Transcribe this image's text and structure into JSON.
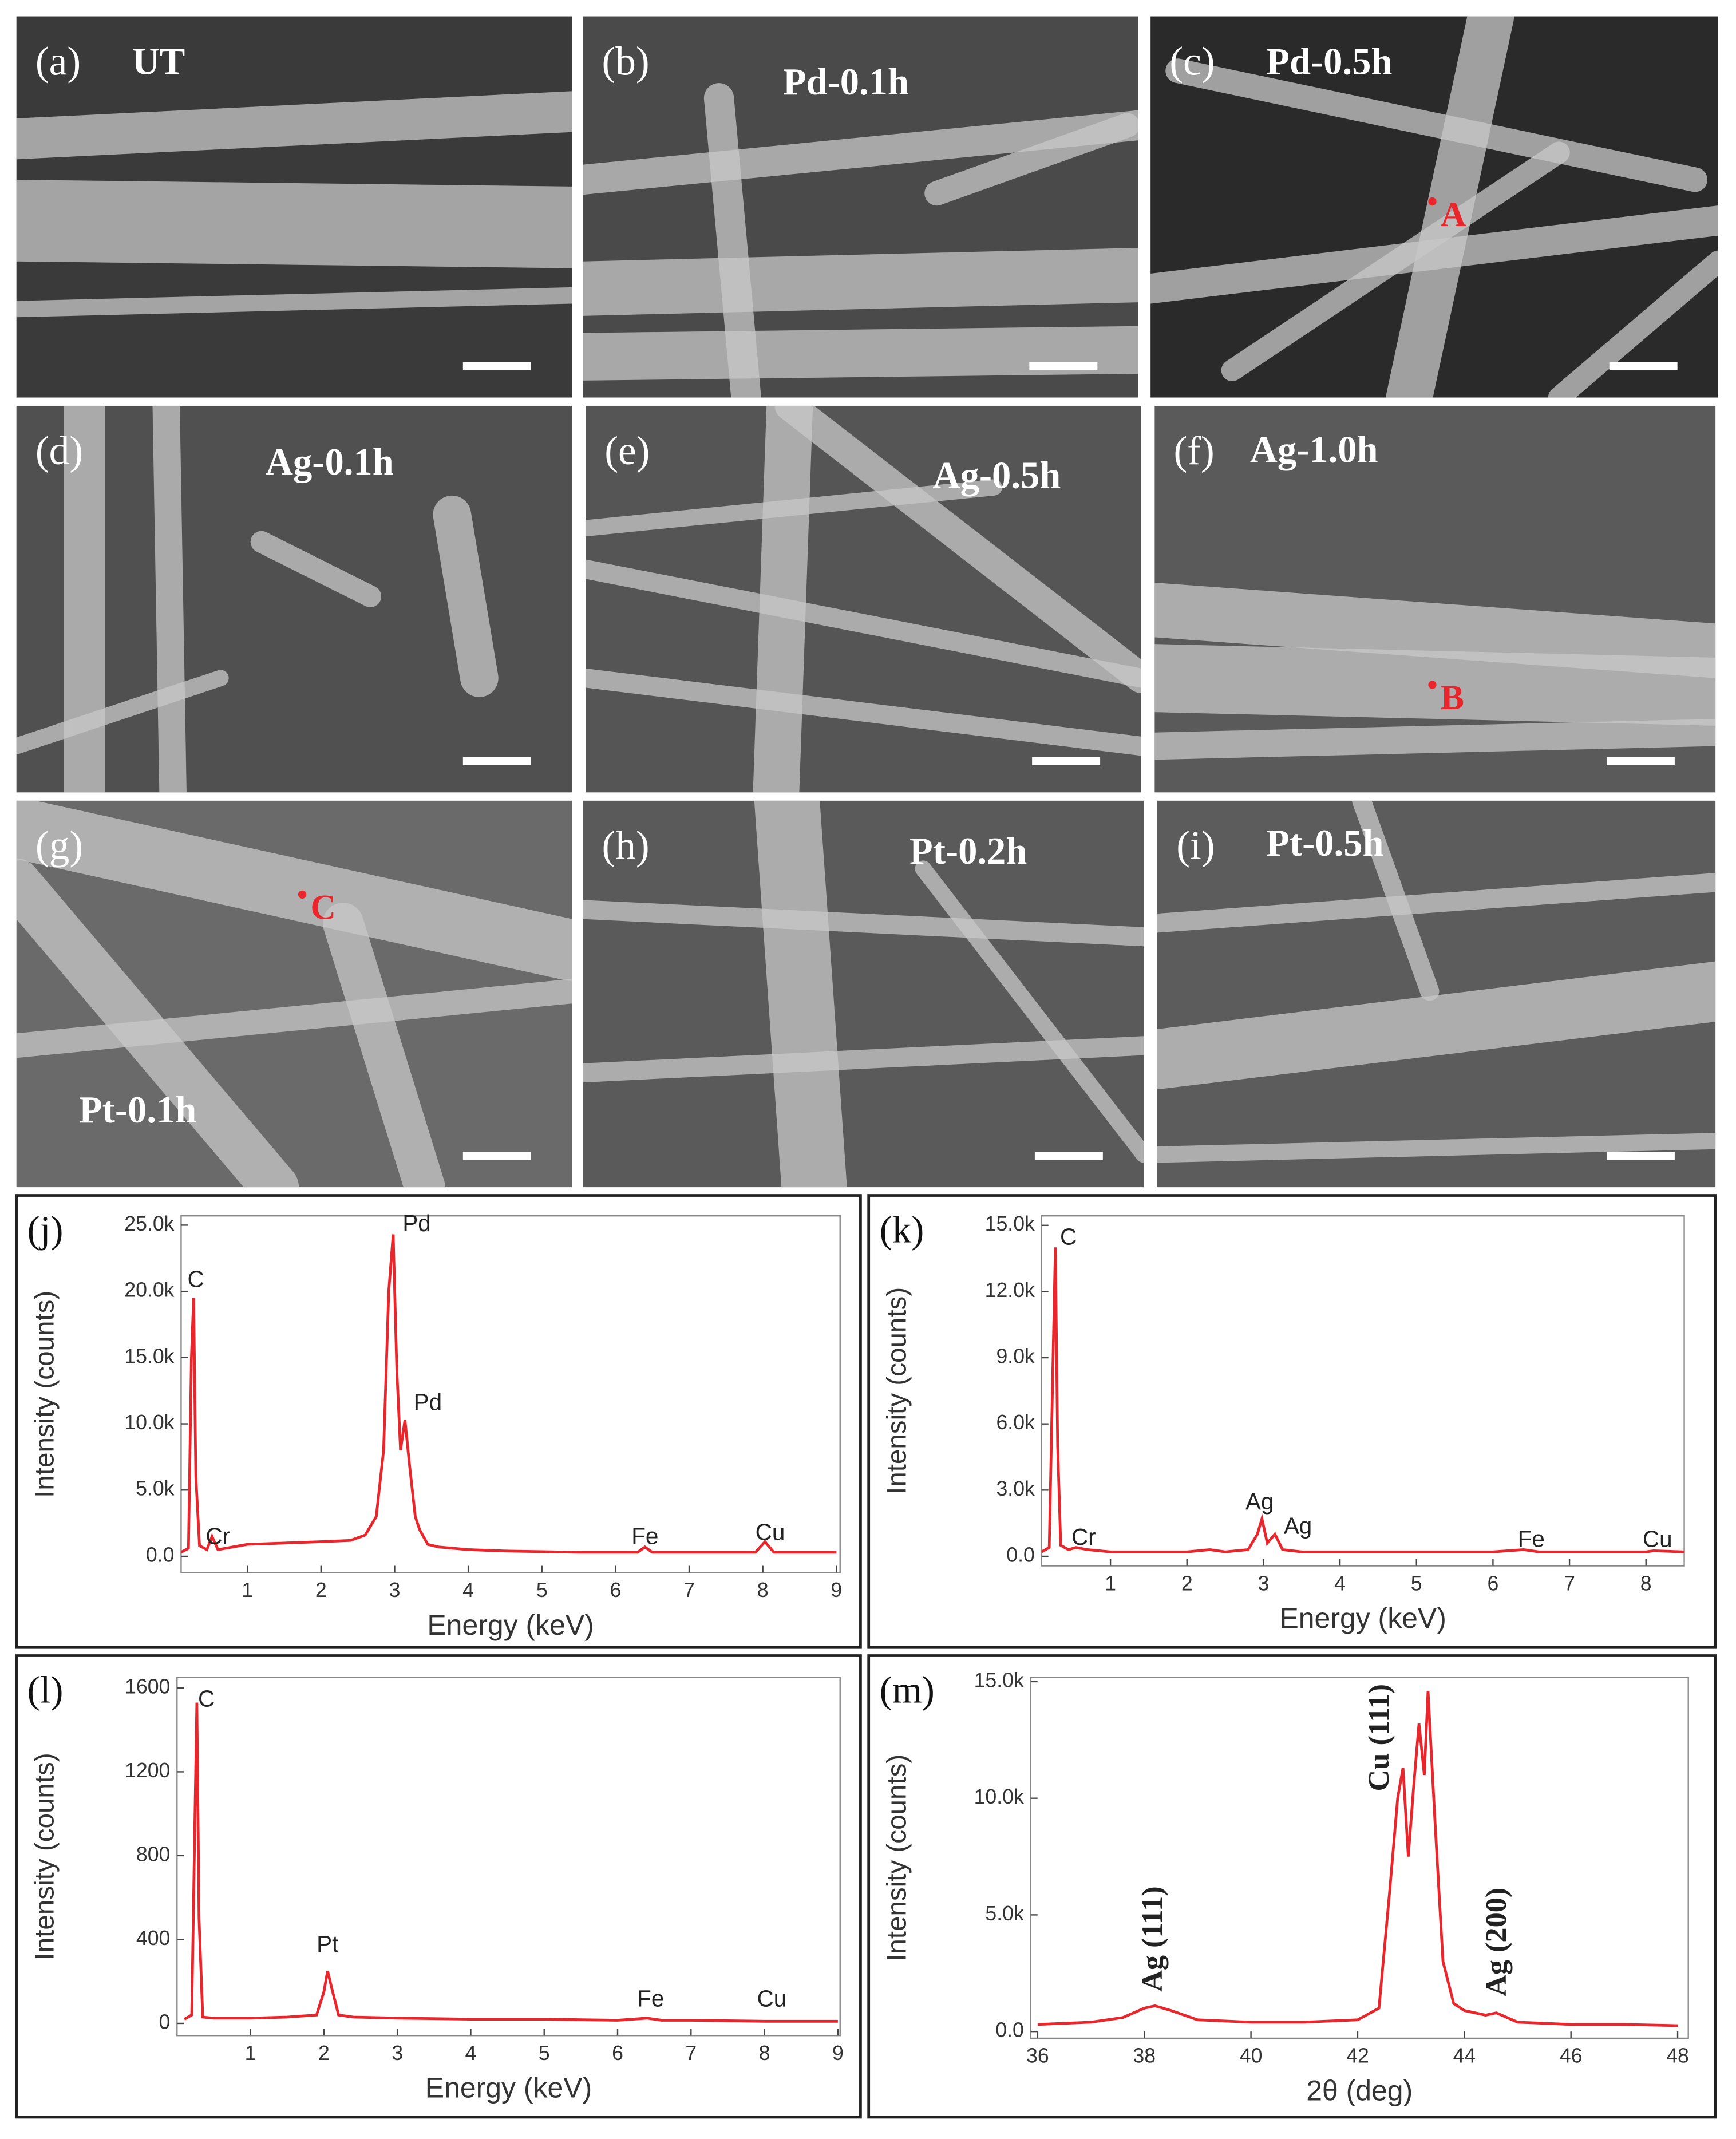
{
  "panels": [
    {
      "label": "(a)",
      "title": "UT"
    },
    {
      "label": "(b)",
      "title": "Pd-0.1h"
    },
    {
      "label": "(c)",
      "title": "Pd-0.5h",
      "marker": "A"
    },
    {
      "label": "(d)",
      "title": "Ag-0.1h"
    },
    {
      "label": "(e)",
      "title": "Ag-0.5h"
    },
    {
      "label": "(f)",
      "title": "Ag-1.0h",
      "marker": "B"
    },
    {
      "label": "(g)",
      "title": "Pt-0.1h",
      "marker": "C"
    },
    {
      "label": "(h)",
      "title": "Pt-0.2h"
    },
    {
      "label": "(i)",
      "title": "Pt-0.5h"
    }
  ],
  "chart_data": [
    {
      "type": "line",
      "label": "(j)",
      "xlabel": "Energy (keV)",
      "ylabel": "Intensity (counts)",
      "color": "#e8262b",
      "x": [
        0.1,
        0.2,
        0.24,
        0.27,
        0.3,
        0.35,
        0.45,
        0.52,
        0.6,
        0.8,
        1,
        1.5,
        2,
        2.4,
        2.6,
        2.75,
        2.85,
        2.92,
        2.98,
        3.03,
        3.08,
        3.14,
        3.2,
        3.28,
        3.34,
        3.45,
        3.6,
        4,
        4.5,
        5,
        5.5,
        6,
        6.3,
        6.4,
        6.5,
        7,
        7.5,
        7.9,
        8.03,
        8.15,
        8.5,
        9
      ],
      "values": [
        300,
        600,
        15000,
        19500,
        6000,
        800,
        500,
        1500,
        500,
        700,
        900,
        1000,
        1100,
        1200,
        1600,
        3000,
        8000,
        20000,
        24300,
        14000,
        8000,
        10300,
        7000,
        3000,
        2000,
        900,
        700,
        500,
        400,
        350,
        300,
        300,
        300,
        700,
        300,
        300,
        300,
        300,
        1100,
        300,
        300,
        300
      ],
      "xlim": [
        0.1,
        9.05
      ],
      "ylim": [
        -1230,
        25700
      ],
      "xticks": [
        1,
        2,
        3,
        4,
        5,
        6,
        7,
        8,
        9
      ],
      "yticks": [
        {
          "value": 0,
          "label": "0.0"
        },
        {
          "value": 5000,
          "label": "5.0k"
        },
        {
          "value": 10000,
          "label": "10.0k"
        },
        {
          "value": 15000,
          "label": "15.0k"
        },
        {
          "value": 20000,
          "label": "20.0k"
        },
        {
          "value": 25000,
          "label": "25.0k"
        }
      ],
      "annotations": [
        {
          "text": "C",
          "x": 0.3,
          "y": 20800
        },
        {
          "text": "Cr",
          "x": 0.6,
          "y": 1400
        },
        {
          "text": "Pd",
          "x": 3.3,
          "y": 25000
        },
        {
          "text": "Pd",
          "x": 3.45,
          "y": 11500
        },
        {
          "text": "Fe",
          "x": 6.4,
          "y": 1400
        },
        {
          "text": "Cu",
          "x": 8.1,
          "y": 1700
        }
      ]
    },
    {
      "type": "line",
      "label": "(k)",
      "xlabel": "Energy (keV)",
      "ylabel": "Intensity (counts)",
      "color": "#e8262b",
      "x": [
        0.1,
        0.2,
        0.25,
        0.28,
        0.31,
        0.35,
        0.45,
        0.55,
        0.7,
        1,
        2,
        2.3,
        2.5,
        2.8,
        2.92,
        2.98,
        3.05,
        3.15,
        3.25,
        3.5,
        4,
        5,
        6,
        6.4,
        6.6,
        7,
        8,
        8.1,
        8.5
      ],
      "values": [
        200,
        400,
        9000,
        14000,
        5000,
        500,
        300,
        400,
        300,
        200,
        200,
        300,
        200,
        300,
        1000,
        1700,
        600,
        1000,
        300,
        200,
        200,
        200,
        200,
        300,
        200,
        200,
        200,
        250,
        200
      ],
      "xlim": [
        0.1,
        8.5
      ],
      "ylim": [
        -430,
        15430
      ],
      "xticks": [
        1,
        2,
        3,
        4,
        5,
        6,
        7,
        8
      ],
      "yticks": [
        {
          "value": 0,
          "label": "0.0"
        },
        {
          "value": 3000,
          "label": "3.0k"
        },
        {
          "value": 6000,
          "label": "6.0k"
        },
        {
          "value": 9000,
          "label": "9.0k"
        },
        {
          "value": 12000,
          "label": "12.0k"
        },
        {
          "value": 15000,
          "label": "15.0k"
        }
      ],
      "annotations": [
        {
          "text": "C",
          "x": 0.45,
          "y": 14400
        },
        {
          "text": "Cr",
          "x": 0.65,
          "y": 800
        },
        {
          "text": "Ag",
          "x": 2.95,
          "y": 2400
        },
        {
          "text": "Ag",
          "x": 3.45,
          "y": 1300
        },
        {
          "text": "Fe",
          "x": 6.5,
          "y": 700
        },
        {
          "text": "Cu",
          "x": 8.15,
          "y": 700
        }
      ]
    },
    {
      "type": "line",
      "label": "(l)",
      "xlabel": "Energy (keV)",
      "ylabel": "Intensity (counts)",
      "color": "#e8262b",
      "x": [
        0.1,
        0.2,
        0.24,
        0.27,
        0.3,
        0.35,
        0.5,
        1,
        1.5,
        1.9,
        2,
        2.05,
        2.12,
        2.2,
        2.4,
        3,
        4,
        5,
        6,
        6.4,
        6.6,
        7,
        8,
        9
      ],
      "values": [
        20,
        40,
        900,
        1530,
        500,
        30,
        25,
        25,
        30,
        40,
        150,
        250,
        150,
        40,
        30,
        25,
        20,
        20,
        15,
        25,
        15,
        15,
        10,
        10
      ],
      "xlim": [
        0,
        9.03
      ],
      "ylim": [
        -58,
        1650
      ],
      "xticks": [
        1,
        2,
        3,
        4,
        5,
        6,
        7,
        8,
        9
      ],
      "yticks": [
        0,
        400,
        800,
        1200,
        1600
      ],
      "annotations": [
        {
          "text": "C",
          "x": 0.4,
          "y": 1540
        },
        {
          "text": "Pt",
          "x": 2.05,
          "y": 370
        },
        {
          "text": "Fe",
          "x": 6.45,
          "y": 110
        },
        {
          "text": "Cu",
          "x": 8.1,
          "y": 110
        }
      ]
    },
    {
      "type": "line",
      "label": "(m)",
      "xlabel": "2θ (deg)",
      "ylabel": "Intensity (counts)",
      "color": "#e8262b",
      "vertical_annotations": true,
      "x": [
        36,
        37,
        37.6,
        38,
        38.2,
        38.5,
        39,
        40,
        41,
        42,
        42.4,
        42.6,
        42.75,
        42.85,
        42.95,
        43.05,
        43.15,
        43.25,
        43.32,
        43.45,
        43.6,
        43.8,
        44,
        44.4,
        44.6,
        45,
        46,
        47,
        48
      ],
      "values": [
        300,
        400,
        600,
        1000,
        1100,
        900,
        500,
        400,
        400,
        500,
        1000,
        6000,
        10000,
        11300,
        7500,
        10500,
        13200,
        11000,
        14600,
        9000,
        3000,
        1200,
        900,
        700,
        800,
        400,
        300,
        300,
        250
      ],
      "xlim": [
        35.87,
        48.2
      ],
      "ylim": [
        -290,
        15180
      ],
      "xticks": [
        36,
        38,
        40,
        42,
        44,
        46,
        48
      ],
      "yticks": [
        {
          "value": 0,
          "label": "0.0"
        },
        {
          "value": 5000,
          "label": "5.0k"
        },
        {
          "value": 10000,
          "label": "10.0k"
        },
        {
          "value": 15000,
          "label": "15.0k"
        }
      ],
      "annotations": [
        {
          "text": "Ag (111)",
          "x": 38.2,
          "y": 1700
        },
        {
          "text": "Cu (111)",
          "x": 42.45,
          "y": 10300
        },
        {
          "text": "Ag (200)",
          "x": 44.65,
          "y": 1500
        }
      ]
    }
  ]
}
